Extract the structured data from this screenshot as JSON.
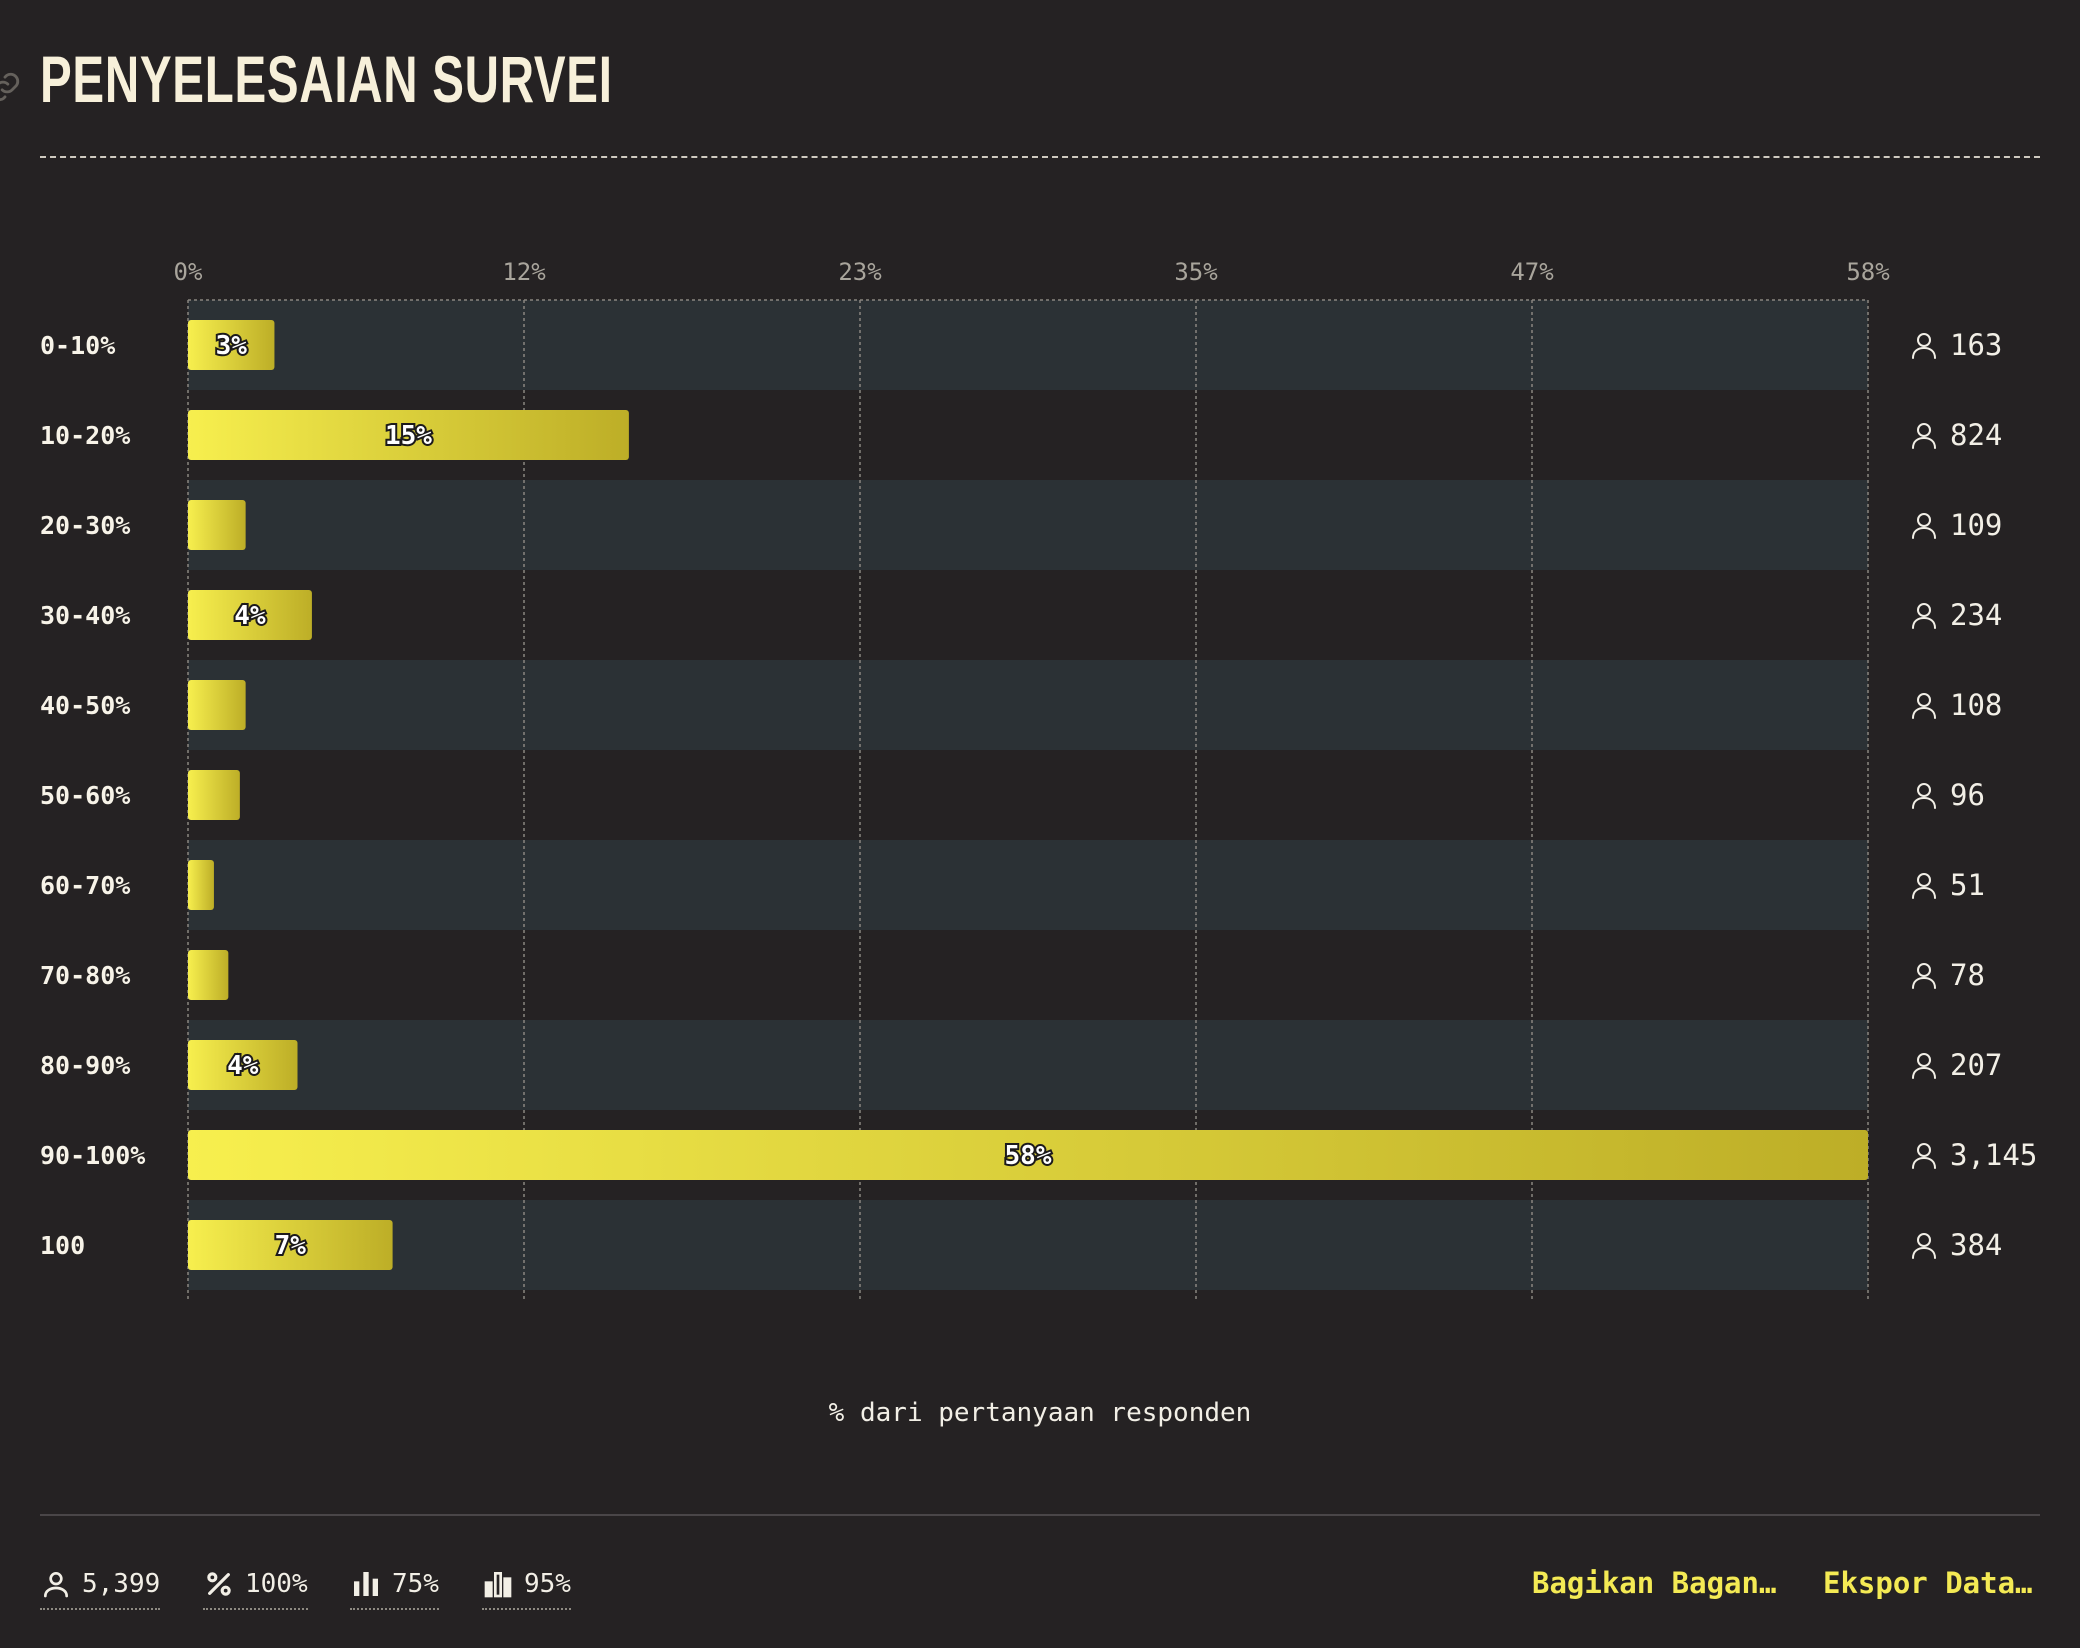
{
  "title": "PENYELESAIAN SURVEI",
  "chart_data": {
    "type": "bar",
    "orientation": "horizontal",
    "categories": [
      "0-10%",
      "10-20%",
      "20-30%",
      "30-40%",
      "40-50%",
      "50-60%",
      "60-70%",
      "70-80%",
      "80-90%",
      "90-100%",
      "100"
    ],
    "values": [
      3.0,
      15.3,
      2.0,
      4.3,
      2.0,
      1.8,
      0.9,
      1.4,
      3.8,
      58.3,
      7.1
    ],
    "value_labels": [
      "3%",
      "15%",
      "",
      "4%",
      "",
      "",
      "",
      "",
      "4%",
      "58%",
      "7%"
    ],
    "counts": [
      "163",
      "824",
      "109",
      "234",
      "108",
      "96",
      "51",
      "78",
      "207",
      "3,145",
      "384"
    ],
    "xticks": [
      "0%",
      "12%",
      "23%",
      "35%",
      "47%",
      "58%"
    ],
    "xlim": [
      0,
      58.3
    ],
    "xlabel": "% dari pertanyaan responden",
    "grid": true,
    "bar_color": "#f7ef4e",
    "bar_color_end": "#bdae27",
    "band_color": "#2b3135"
  },
  "footer": {
    "stats": [
      {
        "icon": "person-icon",
        "value": "5,399"
      },
      {
        "icon": "percent-icon",
        "value": "100%"
      },
      {
        "icon": "bar-chart-icon",
        "value": "75%"
      },
      {
        "icon": "bar-chart-outline-icon",
        "value": "95%"
      }
    ],
    "share_label": "Bagikan Bagan…",
    "export_label": "Ekspor Data…"
  }
}
